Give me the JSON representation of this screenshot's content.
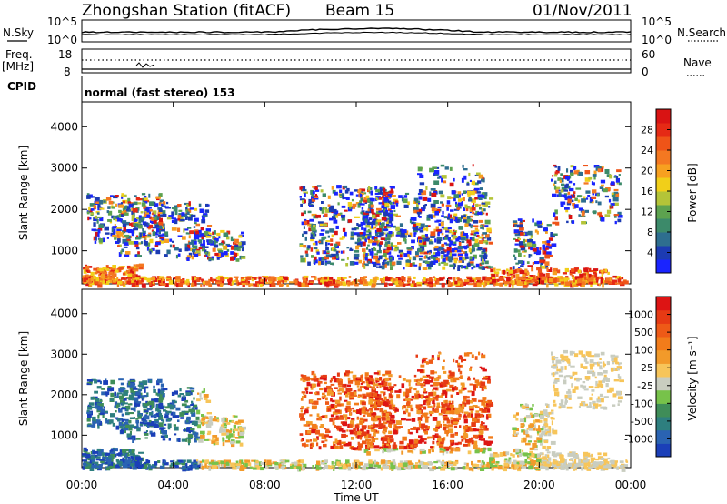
{
  "header": {
    "station": "Zhongshan Station (fitACF)",
    "beam": "Beam 15",
    "date": "01/Nov/2011"
  },
  "noise_panel": {
    "left_label": "N.Sky",
    "right_label": "N.Search",
    "left_ticks": [
      "10^5",
      "10^0"
    ],
    "right_ticks": [
      "10^5",
      "10^0"
    ]
  },
  "freq_panel": {
    "left_label_line1": "Freq.",
    "left_label_line2": "[MHz]",
    "right_label": "Nave",
    "left_ticks": [
      "18",
      "8"
    ],
    "right_ticks": [
      "60",
      "0"
    ]
  },
  "cpid": {
    "label": "CPID",
    "text": "normal (fast stereo) 153"
  },
  "chart_data": [
    {
      "type": "heatmap",
      "name": "power",
      "ylabel": "Slant Range [km]",
      "xlabel": "Time UT",
      "x_ticks": [
        "00:00",
        "04:00",
        "08:00",
        "12:00",
        "16:00",
        "20:00",
        "00:00"
      ],
      "y_ticks": [
        "1000",
        "2000",
        "3000",
        "4000"
      ],
      "ylim": [
        200,
        4600
      ],
      "xlim_hours": [
        0,
        24
      ],
      "colorbar": {
        "label": "Power [dB]",
        "ticks": [
          "4",
          "8",
          "12",
          "16",
          "20",
          "24",
          "28"
        ],
        "colors": [
          "#1a24ff",
          "#1c3bb3",
          "#2e6e8f",
          "#3c8a6a",
          "#5da24f",
          "#b4c438",
          "#f1cf19",
          "#f7a020",
          "#f47821",
          "#ef5418",
          "#e52a15",
          "#d91313"
        ]
      }
    },
    {
      "type": "heatmap",
      "name": "velocity",
      "ylabel": "Slant Range [km]",
      "xlabel": "Time UT",
      "x_ticks": [
        "00:00",
        "04:00",
        "08:00",
        "12:00",
        "16:00",
        "20:00",
        "00:00"
      ],
      "y_ticks": [
        "1000",
        "2000",
        "3000",
        "4000"
      ],
      "ylim": [
        200,
        4600
      ],
      "xlim_hours": [
        0,
        24
      ],
      "colorbar": {
        "label": "Velocity [m s⁻¹]",
        "ticks": [
          "1000",
          "500",
          "100",
          "25",
          "-25",
          "-100",
          "-500",
          "-1000"
        ],
        "colors": [
          "#1b3fb8",
          "#2a63b2",
          "#2e7f7f",
          "#3f8d58",
          "#77c24a",
          "#c9cdc0",
          "#f7c55a",
          "#f29a2a",
          "#f27c1a",
          "#ee5a17",
          "#e63a14",
          "#dd1414"
        ]
      }
    }
  ]
}
